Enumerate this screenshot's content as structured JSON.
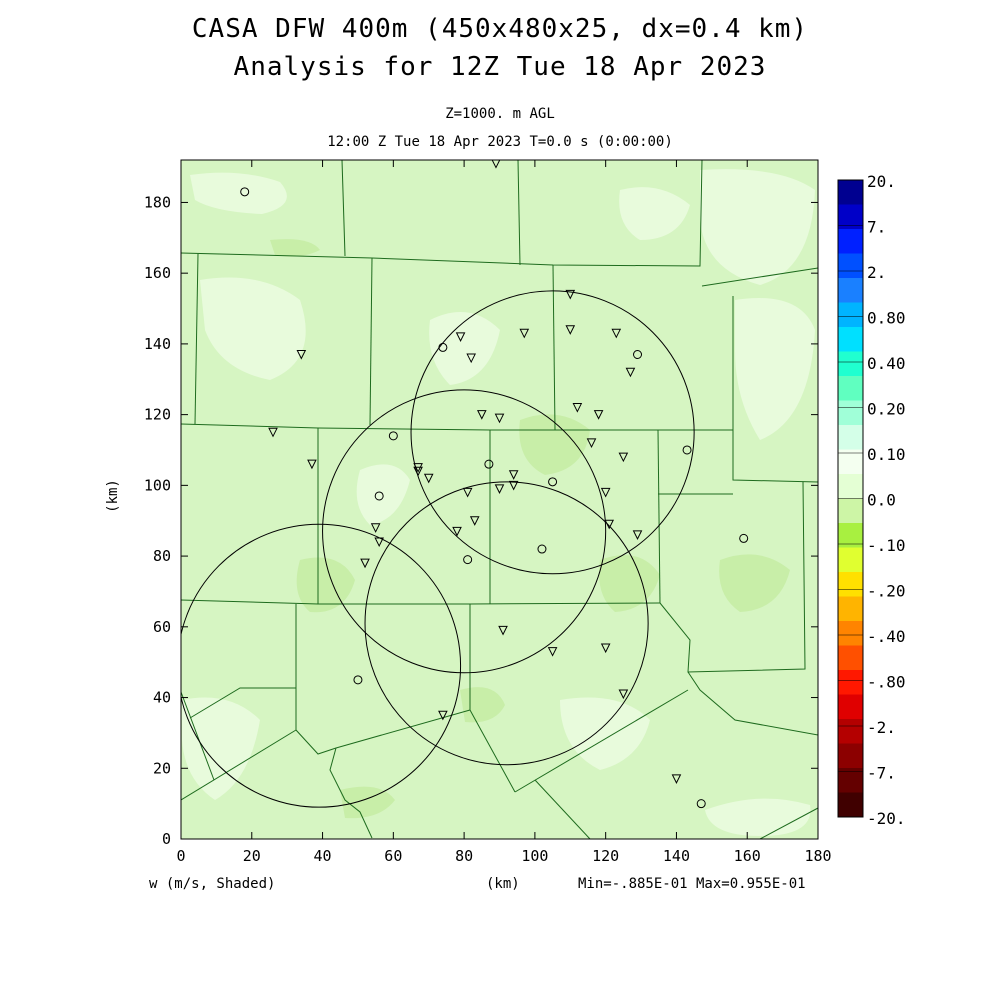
{
  "titles": {
    "line1": "CASA DFW 400m (450x480x25, dx=0.4 km)",
    "line2": "Analysis for 12Z Tue 18 Apr 2023",
    "level": "Z=1000. m AGL",
    "time": "12:00 Z Tue 18 Apr 2023   T=0.0 s (0:00:00)"
  },
  "axes": {
    "x_label": "(km)",
    "y_label": "(km)",
    "x_ticks": [
      "0",
      "20",
      "40",
      "60",
      "80",
      "100",
      "120",
      "140",
      "160",
      "180"
    ],
    "y_ticks": [
      "0",
      "20",
      "40",
      "60",
      "80",
      "100",
      "120",
      "140",
      "160",
      "180"
    ],
    "x_range": [
      0,
      180
    ],
    "y_range": [
      0,
      192
    ]
  },
  "footer": {
    "variable": "w (m/s, Shaded)",
    "units": "(km)",
    "stats": "Min=-.885E-01 Max=0.955E-01"
  },
  "colorbar": {
    "labels": [
      "20.",
      "7.",
      "2.",
      "0.80",
      "0.40",
      "0.20",
      "0.10",
      "0.0",
      "-.10",
      "-.20",
      "-.40",
      "-.80",
      "-2.",
      "-7.",
      "-20."
    ],
    "colors": [
      "#000090",
      "#0000c8",
      "#0020ff",
      "#0050ff",
      "#1a80ff",
      "#00b4ff",
      "#00e0ff",
      "#20ffd0",
      "#60ffc0",
      "#a0ffd8",
      "#d4ffe8",
      "#f4fff0",
      "#e4ffd4",
      "#cdf5a6",
      "#a8f040",
      "#e0ff30",
      "#ffe000",
      "#ffb400",
      "#ff8400",
      "#ff5000",
      "#ff1800",
      "#e00000",
      "#b40000",
      "#8c0000",
      "#640000",
      "#400000"
    ]
  },
  "map": {
    "background": "#d6f5c2",
    "radar_circles": [
      {
        "cx": 39,
        "cy": 49,
        "r": 40
      },
      {
        "cx": 80,
        "cy": 87,
        "r": 40
      },
      {
        "cx": 105,
        "cy": 115,
        "r": 40
      },
      {
        "cx": 92,
        "cy": 61,
        "r": 40
      }
    ],
    "triangles": [
      [
        89,
        191
      ],
      [
        110,
        154
      ],
      [
        110,
        144
      ],
      [
        97,
        143
      ],
      [
        123,
        143
      ],
      [
        79,
        142
      ],
      [
        82,
        136
      ],
      [
        127,
        132
      ],
      [
        34,
        137
      ],
      [
        26,
        115
      ],
      [
        37,
        106
      ],
      [
        112,
        122
      ],
      [
        85,
        120
      ],
      [
        90,
        119
      ],
      [
        118,
        120
      ],
      [
        116,
        112
      ],
      [
        125,
        108
      ],
      [
        67,
        105
      ],
      [
        67,
        104
      ],
      [
        70,
        102
      ],
      [
        94,
        103
      ],
      [
        94,
        100
      ],
      [
        81,
        98
      ],
      [
        90,
        99
      ],
      [
        120,
        98
      ],
      [
        121,
        89
      ],
      [
        129,
        86
      ],
      [
        78,
        87
      ],
      [
        83,
        90
      ],
      [
        55,
        88
      ],
      [
        56,
        84
      ],
      [
        52,
        78
      ],
      [
        91,
        59
      ],
      [
        105,
        53
      ],
      [
        120,
        54
      ],
      [
        125,
        41
      ],
      [
        74,
        35
      ],
      [
        140,
        17
      ]
    ],
    "circles": [
      [
        18,
        183
      ],
      [
        74,
        139
      ],
      [
        60,
        114
      ],
      [
        87,
        106
      ],
      [
        105,
        101
      ],
      [
        56,
        97
      ],
      [
        102,
        82
      ],
      [
        81,
        79
      ],
      [
        143,
        110
      ],
      [
        159,
        85
      ],
      [
        129,
        137
      ],
      [
        50,
        45
      ],
      [
        147,
        10
      ]
    ]
  }
}
